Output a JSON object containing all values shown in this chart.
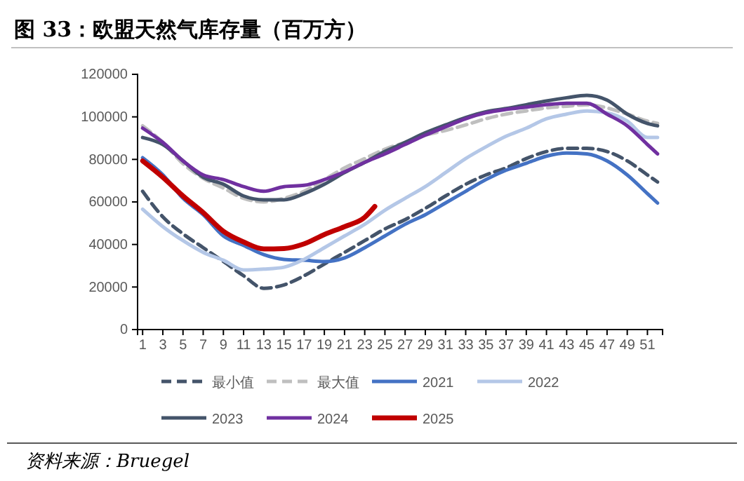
{
  "chart_data": {
    "type": "line",
    "title": "图 33：欧盟天然气库存量（百万方）",
    "annotations": [
      "资料来源：Bruegel"
    ],
    "x": [
      1,
      3,
      5,
      7,
      9,
      11,
      13,
      15,
      17,
      19,
      21,
      23,
      25,
      27,
      29,
      31,
      33,
      35,
      37,
      39,
      41,
      43,
      45,
      47,
      49,
      51,
      52
    ],
    "xlim": [
      0.5,
      52.5
    ],
    "xticks": [
      1,
      3,
      5,
      7,
      9,
      11,
      13,
      15,
      17,
      19,
      21,
      23,
      25,
      27,
      29,
      31,
      33,
      35,
      37,
      39,
      41,
      43,
      45,
      47,
      49,
      51
    ],
    "ylim": [
      0,
      120000
    ],
    "yticks": [
      0,
      20000,
      40000,
      60000,
      80000,
      100000,
      120000
    ],
    "grid": false,
    "legend": "bottom",
    "marker": "none",
    "series": [
      {
        "name": "最小值",
        "color": "#44546a",
        "line_style": "dashed",
        "values": [
          65000,
          53000,
          45000,
          38500,
          32000,
          25300,
          19400,
          21000,
          25300,
          30800,
          36300,
          41800,
          47300,
          51700,
          57000,
          62800,
          68300,
          72700,
          76000,
          80400,
          83700,
          85200,
          85200,
          83700,
          79300,
          72700,
          69400
        ]
      },
      {
        "name": "最大值",
        "color": "#bfbfbf",
        "line_style": "dashed",
        "values": [
          95800,
          88000,
          78000,
          71100,
          66500,
          61700,
          60000,
          61700,
          65000,
          70500,
          76000,
          80400,
          84800,
          88000,
          91400,
          93600,
          96200,
          99100,
          101300,
          102800,
          104200,
          105000,
          105700,
          104200,
          101300,
          98000,
          96900
        ]
      },
      {
        "name": "2021",
        "color": "#4472c4",
        "line_style": "solid",
        "values": [
          80800,
          72800,
          61700,
          54000,
          44000,
          39600,
          35200,
          33000,
          32600,
          32000,
          33700,
          38500,
          44000,
          49500,
          54000,
          59500,
          65000,
          70500,
          74900,
          78200,
          81500,
          83000,
          82600,
          79300,
          72700,
          63900,
          59500
        ]
      },
      {
        "name": "2022",
        "color": "#b4c7e7",
        "line_style": "solid",
        "values": [
          56600,
          48400,
          41800,
          36300,
          32600,
          28000,
          28400,
          29300,
          33000,
          38500,
          44000,
          49500,
          56100,
          61700,
          67200,
          73800,
          80400,
          85900,
          90900,
          94700,
          99100,
          101300,
          102800,
          101900,
          98000,
          90300,
          90300
        ]
      },
      {
        "name": "2023",
        "color": "#44546a",
        "line_style": "solid",
        "values": [
          90300,
          87000,
          79300,
          71600,
          68300,
          62800,
          61000,
          61000,
          63900,
          68300,
          73800,
          78600,
          83700,
          88000,
          92500,
          96200,
          99700,
          102400,
          103900,
          105700,
          107500,
          109000,
          110100,
          107900,
          101300,
          96900,
          95800
        ]
      },
      {
        "name": "2024",
        "color": "#7030a0",
        "line_style": "solid",
        "values": [
          94700,
          88000,
          79300,
          72700,
          70500,
          67200,
          65000,
          67200,
          67800,
          70500,
          74200,
          78600,
          82600,
          87000,
          91400,
          95300,
          99100,
          101900,
          103500,
          104600,
          105700,
          106400,
          106400,
          101300,
          95800,
          87000,
          82600
        ]
      },
      {
        "name": "2025",
        "color": "#c00000",
        "line_style": "solid",
        "x": [
          1,
          3,
          5,
          7,
          9,
          11,
          13,
          15,
          17,
          19,
          21,
          23,
          24
        ],
        "values": [
          79300,
          71600,
          62800,
          55000,
          46200,
          41200,
          37900,
          38100,
          40300,
          44700,
          48400,
          52800,
          57900
        ]
      }
    ]
  }
}
